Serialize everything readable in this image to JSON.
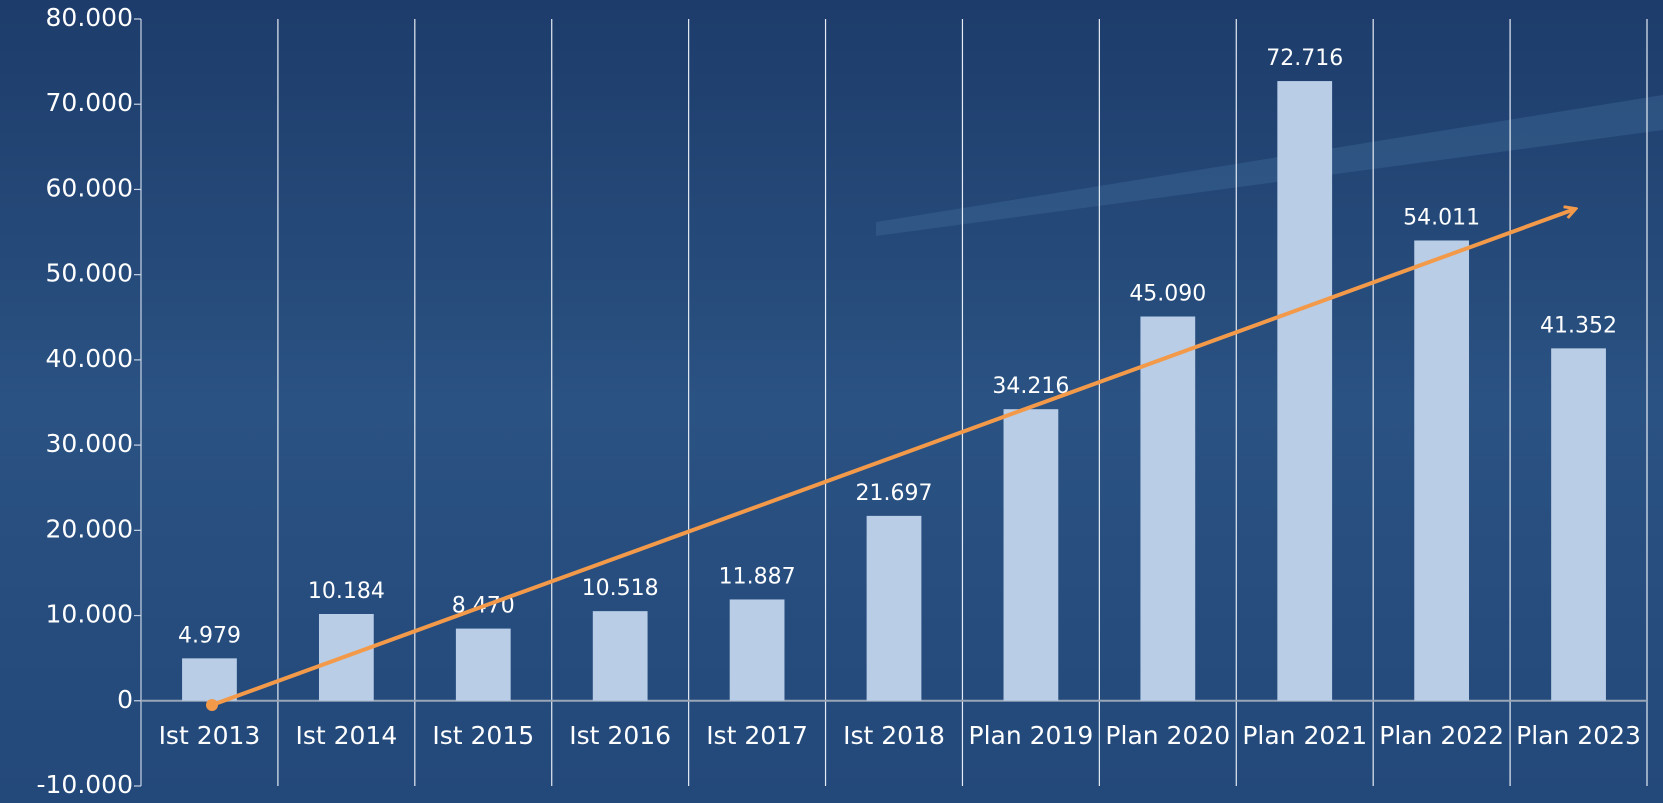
{
  "chart_data": {
    "type": "bar",
    "categories": [
      "Ist 2013",
      "Ist 2014",
      "Ist 2015",
      "Ist 2016",
      "Ist 2017",
      "Ist 2018",
      "Plan 2019",
      "Plan 2020",
      "Plan 2021",
      "Plan 2022",
      "Plan 2023"
    ],
    "values": [
      4979,
      10184,
      8470,
      10518,
      11887,
      21697,
      34216,
      45090,
      72716,
      54011,
      41352
    ],
    "value_labels": [
      "4.979",
      "10.184",
      "8.470",
      "10.518",
      "11.887",
      "21.697",
      "34.216",
      "45.090",
      "72.716",
      "54.011",
      "41.352"
    ],
    "color": "#b9cde6",
    "ylim": [
      -10000,
      80000
    ],
    "yticks": [
      {
        "value": -10000,
        "label": "-10.000"
      },
      0,
      {
        "value": 10000,
        "label": "10.000"
      },
      {
        "value": 20000,
        "label": "20.000"
      },
      {
        "value": 30000,
        "label": "30.000"
      },
      {
        "value": 40000,
        "label": "40.000"
      },
      {
        "value": 50000,
        "label": "50.000"
      },
      {
        "value": 60000,
        "label": "60.000"
      },
      {
        "value": 70000,
        "label": "70.000"
      },
      {
        "value": 80000,
        "label": "80.000"
      }
    ]
  }
}
